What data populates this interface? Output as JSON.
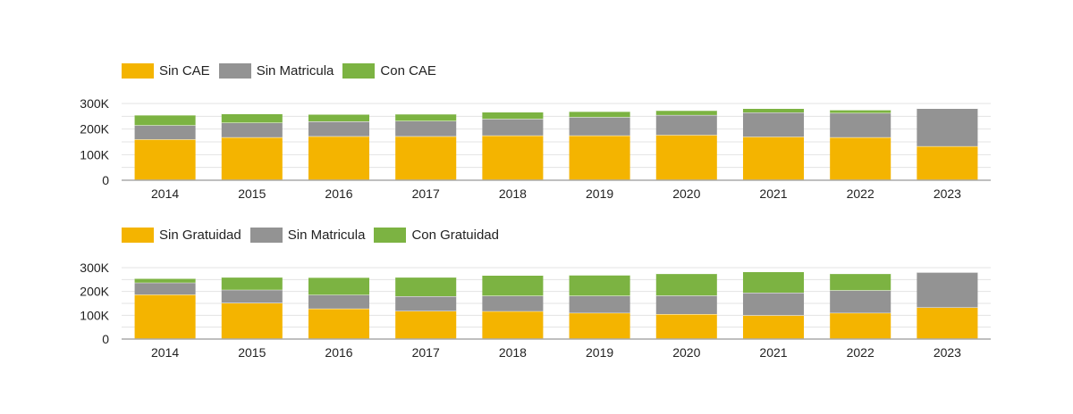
{
  "colors": {
    "yellow": "#F4B400",
    "gray": "#939393",
    "green": "#7CB342",
    "grid": "#e3e3e3",
    "axis": "#aaaaaa"
  },
  "chart_data": [
    {
      "type": "bar",
      "stacked": true,
      "categories": [
        "2014",
        "2015",
        "2016",
        "2017",
        "2018",
        "2019",
        "2020",
        "2021",
        "2022",
        "2023"
      ],
      "ylim": [
        0,
        300000
      ],
      "yticks": [
        0,
        100000,
        200000,
        300000
      ],
      "ytick_labels": [
        "0",
        "100K",
        "200K",
        "300K"
      ],
      "legend_position": "top-left",
      "series": [
        {
          "name": "Sin CAE",
          "color": "#F4B400",
          "values": [
            160000,
            168000,
            172000,
            172000,
            175000,
            175000,
            177000,
            170000,
            168000,
            133000
          ]
        },
        {
          "name": "Sin Matricula",
          "color": "#939393",
          "values": [
            55000,
            57000,
            58000,
            60000,
            65000,
            72000,
            78000,
            95000,
            95000,
            148000
          ]
        },
        {
          "name": "Con CAE",
          "color": "#7CB342",
          "values": [
            40000,
            35000,
            28000,
            27000,
            27000,
            22000,
            18000,
            16000,
            12000,
            0
          ]
        }
      ]
    },
    {
      "type": "bar",
      "stacked": true,
      "categories": [
        "2014",
        "2015",
        "2016",
        "2017",
        "2018",
        "2019",
        "2020",
        "2021",
        "2022",
        "2023"
      ],
      "ylim": [
        0,
        300000
      ],
      "yticks": [
        0,
        100000,
        200000,
        300000
      ],
      "ytick_labels": [
        "0",
        "100K",
        "200K",
        "300K"
      ],
      "legend_position": "top-left",
      "series": [
        {
          "name": "Sin Gratuidad",
          "color": "#F4B400",
          "values": [
            187000,
            152000,
            128000,
            118000,
            117000,
            110000,
            105000,
            100000,
            110000,
            133000
          ]
        },
        {
          "name": "Sin Matricula",
          "color": "#939393",
          "values": [
            50000,
            55000,
            58000,
            62000,
            65000,
            72000,
            78000,
            95000,
            95000,
            148000
          ]
        },
        {
          "name": "Con Gratuidad",
          "color": "#7CB342",
          "values": [
            18000,
            53000,
            73000,
            80000,
            86000,
            87000,
            92000,
            88000,
            70000,
            0
          ]
        }
      ]
    }
  ]
}
